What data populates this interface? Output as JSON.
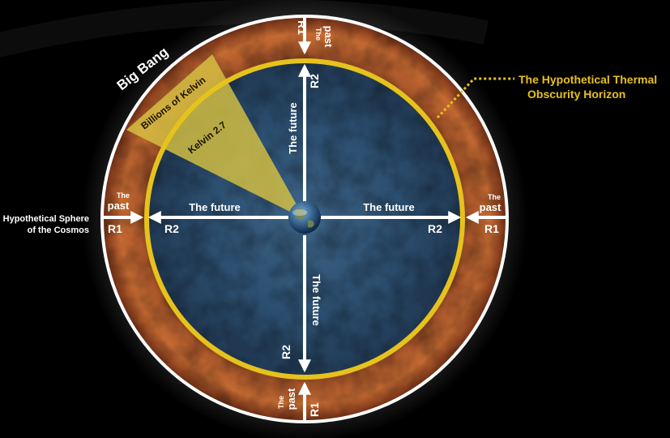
{
  "labels": {
    "big_bang": "Big Bang",
    "billions_kelvin": "Billions of Kelvin",
    "kelvin_27": "Kelvin 2.7",
    "horizon_line1": "The Hypothetical Thermal",
    "horizon_line2": "Obscurity Horizon",
    "sphere_line1": "Hypothetical Sphere",
    "sphere_line2": "of the Cosmos",
    "the": "The",
    "past": "past",
    "future": "The future",
    "r1": "R1",
    "r2": "R2"
  },
  "colors": {
    "background": "#000000",
    "outer_ring": "#ffffff",
    "past_shell": "#b9602a",
    "inner_cosmos": "#2f5475",
    "horizon_ring": "#e6c21c",
    "wedge": "#d7c243",
    "annotation": "#e8c11c",
    "text": "#ffffff"
  }
}
